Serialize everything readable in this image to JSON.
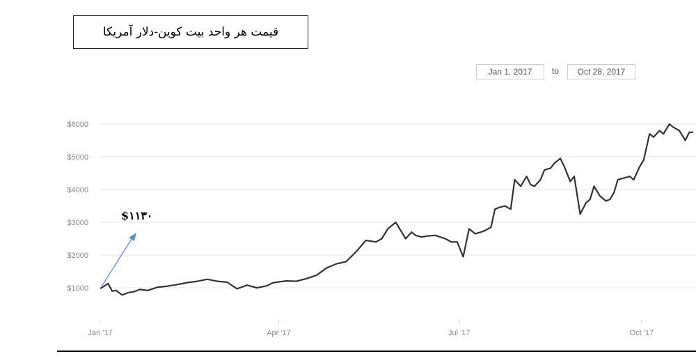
{
  "title": "قیمت هر واحد بیت کوین-دلار آمریکا",
  "date_range": {
    "from": "Jan 1, 2017",
    "to_label": "to",
    "to": "Oct 28, 2017"
  },
  "annotation": {
    "text": "$۱۱۳۰",
    "arrow_color": "#5b8fd0"
  },
  "colors": {
    "line": "#333333",
    "grid": "#e6e6e6",
    "tick_text": "#8a8a8a"
  },
  "chart_data": {
    "type": "line",
    "title": "قیمت هر واحد بیت کوین-دلار آمریکا",
    "xlabel": "",
    "ylabel": "",
    "ylim": [
      0,
      6500
    ],
    "x_ticks": [
      {
        "label": "Jan '17",
        "x": 1
      },
      {
        "label": "Apr '17",
        "x": 91
      },
      {
        "label": "Jul '17",
        "x": 182
      },
      {
        "label": "Oct '17",
        "x": 274
      }
    ],
    "y_ticks": [
      {
        "label": "$1000",
        "value": 1000
      },
      {
        "label": "$2000",
        "value": 2000
      },
      {
        "label": "$3000",
        "value": 3000
      },
      {
        "label": "$4000",
        "value": 4000
      },
      {
        "label": "$5000",
        "value": 5000
      },
      {
        "label": "$6000",
        "value": 6000
      }
    ],
    "grid": true,
    "x_unit": "day of 2017",
    "series": [
      {
        "x": [
          1,
          3,
          5,
          7,
          9,
          12,
          15,
          18,
          21,
          25,
          30,
          35,
          40,
          45,
          50,
          55,
          60,
          65,
          70,
          75,
          80,
          85,
          88,
          91,
          95,
          100,
          105,
          110,
          115,
          120,
          125,
          130,
          135,
          140,
          143,
          146,
          150,
          155,
          158,
          160,
          163,
          166,
          170,
          175,
          178,
          181,
          184,
          187,
          190,
          193,
          195,
          198,
          200,
          202,
          205,
          208,
          210,
          213,
          216,
          218,
          220,
          223,
          225,
          228,
          230,
          233,
          235,
          238,
          240,
          243,
          246,
          248,
          250,
          253,
          256,
          258,
          260,
          262,
          265,
          268,
          270,
          273,
          275,
          278,
          280,
          283,
          285,
          288,
          290,
          293,
          296,
          298,
          300
        ],
        "y": [
          980,
          1050,
          1130,
          900,
          920,
          780,
          850,
          880,
          950,
          920,
          1020,
          1050,
          1100,
          1160,
          1200,
          1260,
          1200,
          1170,
          970,
          1080,
          1000,
          1060,
          1150,
          1180,
          1210,
          1200,
          1280,
          1380,
          1600,
          1730,
          1800,
          2100,
          2450,
          2400,
          2500,
          2800,
          3000,
          2500,
          2700,
          2600,
          2550,
          2580,
          2600,
          2500,
          2400,
          2400,
          1950,
          2800,
          2650,
          2700,
          2750,
          2850,
          3400,
          3450,
          3500,
          3400,
          4300,
          4100,
          4400,
          4150,
          4100,
          4300,
          4600,
          4650,
          4800,
          4950,
          4700,
          4250,
          4400,
          3250,
          3600,
          3700,
          4100,
          3800,
          3650,
          3700,
          3900,
          4300,
          4350,
          4400,
          4300,
          4700,
          4900,
          5700,
          5600,
          5800,
          5700,
          6000,
          5900,
          5800,
          5500,
          5750,
          5750
        ]
      }
    ]
  }
}
